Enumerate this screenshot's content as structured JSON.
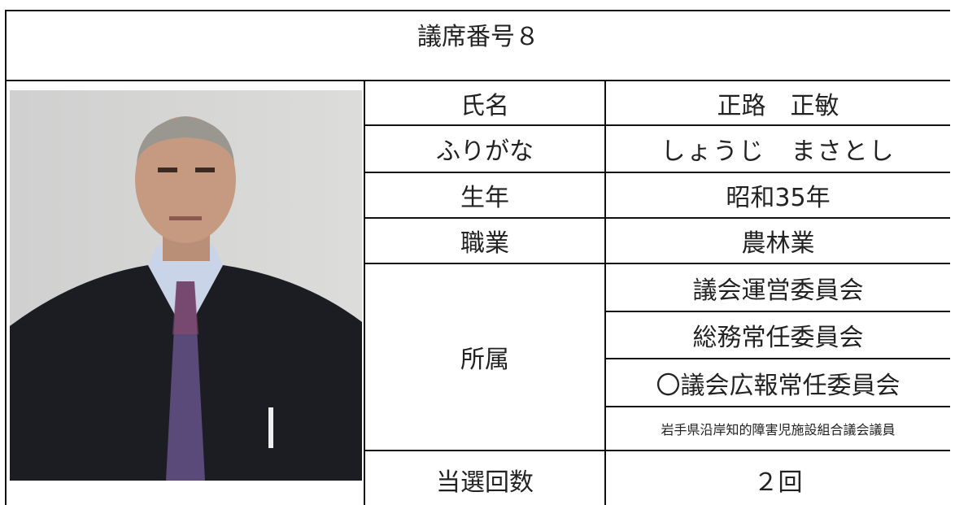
{
  "header": {
    "title": "議席番号８"
  },
  "rows": [
    {
      "label": "氏名",
      "value": "正路　正敏"
    },
    {
      "label": "ふりがな",
      "value": "しょうじ　まさとし"
    },
    {
      "label": "生年",
      "value": "昭和35年"
    },
    {
      "label": "職業",
      "value": "農林業"
    }
  ],
  "affiliation": {
    "label": "所属",
    "values": [
      "議会運営委員会",
      "総務常任委員会",
      "〇議会広報常任委員会",
      "岩手県沿岸知的障害児施設組合議会議員"
    ]
  },
  "terms": {
    "label": "当選回数",
    "value": "２回"
  }
}
